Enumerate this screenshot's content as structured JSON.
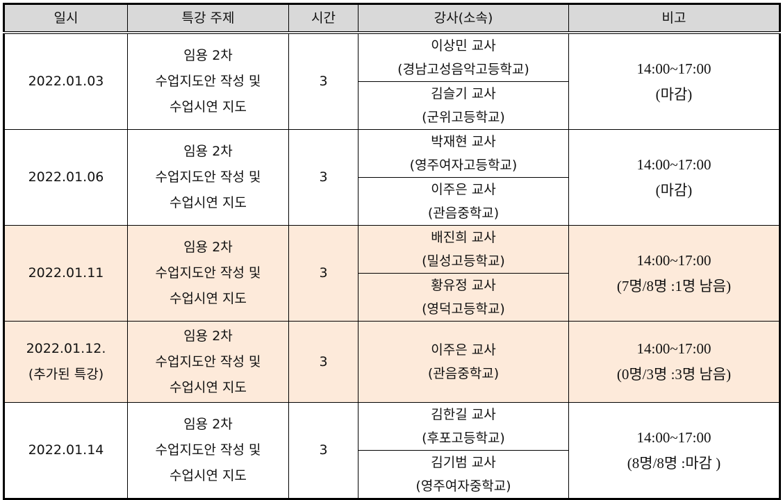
{
  "headers": [
    "일시",
    "특강 주제",
    "시간",
    "강사(소속)",
    "비고"
  ],
  "colors": {
    "header_bg": "#d9d9d9",
    "highlight_bg": "#fdeada"
  },
  "rows": [
    {
      "date": [
        "2022.01.03"
      ],
      "topic": [
        "임용 2차",
        "수업지도안 작성 및",
        "수업시연 지도"
      ],
      "hours": "3",
      "instructors": [
        {
          "name": "이상민 교사",
          "school": "(경남고성음악고등학교)"
        },
        {
          "name": "김슬기 교사",
          "school": "(군위고등학교)"
        }
      ],
      "note": [
        "14:00~17:00",
        "(마감)"
      ],
      "highlighted": false
    },
    {
      "date": [
        "2022.01.06"
      ],
      "topic": [
        "임용 2차",
        "수업지도안 작성 및",
        "수업시연 지도"
      ],
      "hours": "3",
      "instructors": [
        {
          "name": "박재현 교사",
          "school": "(영주여자고등학교)"
        },
        {
          "name": "이주은 교사",
          "school": "(관음중학교)"
        }
      ],
      "note": [
        "14:00~17:00",
        "(마감)"
      ],
      "highlighted": false
    },
    {
      "date": [
        "2022.01.11"
      ],
      "topic": [
        "임용 2차",
        "수업지도안 작성 및",
        "수업시연 지도"
      ],
      "hours": "3",
      "instructors": [
        {
          "name": "배진희 교사",
          "school": "(밀성고등학교)"
        },
        {
          "name": "황유정 교사",
          "school": "(영덕고등학교)"
        }
      ],
      "note": [
        "14:00~17:00",
        "(7명/8명 :1명 남음)"
      ],
      "highlighted": true
    },
    {
      "date": [
        "2022.01.12.",
        "(추가된 특강)"
      ],
      "topic": [
        "임용 2차",
        "수업지도안 작성 및",
        "수업시연 지도"
      ],
      "hours": "3",
      "instructors": [
        {
          "name": "이주은 교사",
          "school": "(관음중학교)"
        }
      ],
      "note": [
        "14:00~17:00",
        "(0명/3명 :3명 남음)"
      ],
      "highlighted": true
    },
    {
      "date": [
        "2022.01.14"
      ],
      "topic": [
        "임용 2차",
        "수업지도안 작성 및",
        "수업시연 지도"
      ],
      "hours": "3",
      "instructors": [
        {
          "name": "김한길 교사",
          "school": "(후포고등학교)"
        },
        {
          "name": "김기범 교사",
          "school": "(영주여자중학교)"
        }
      ],
      "note": [
        "14:00~17:00",
        "(8명/8명 :마감 )"
      ],
      "highlighted": false
    }
  ]
}
